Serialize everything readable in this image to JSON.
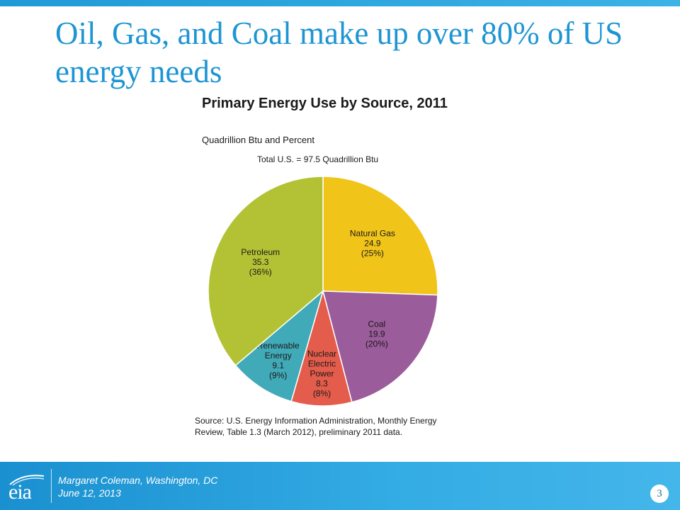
{
  "slide": {
    "title": "Oil, Gas, and Coal make up over 80%  of US energy needs",
    "page_number": "3"
  },
  "footer": {
    "logo_text": "eia",
    "presenter": "Margaret Coleman, Washington, DC",
    "date": "June 12, 2013"
  },
  "colors": {
    "accent": "#1e95d3",
    "footer_bg": "#2aa3de"
  },
  "chart_data": {
    "type": "pie",
    "title": "Primary Energy Use by Source, 2011",
    "subtitle": "Quadrillion Btu and Percent",
    "total_label": "Total U.S. = 97.5 Quadrillion Btu",
    "source_note": "Source: U.S. Energy Information Administration, Monthly Energy Review, Table 1.3 (March 2012), preliminary 2011 data.",
    "slices": [
      {
        "label": [
          "Natural Gas"
        ],
        "value": 24.9,
        "value_label": "24.9",
        "percent": "(25%)",
        "color": "#f0c419"
      },
      {
        "label": [
          "Coal"
        ],
        "value": 19.9,
        "value_label": "19.9",
        "percent": "(20%)",
        "color": "#9a5c9a"
      },
      {
        "label": [
          "Nuclear",
          "Electric",
          "Power"
        ],
        "value": 8.3,
        "value_label": "8.3",
        "percent": "(8%)",
        "color": "#e45c4b"
      },
      {
        "label": [
          "Renewable",
          "Energy"
        ],
        "value": 9.1,
        "value_label": "9.1",
        "percent": "(9%)",
        "color": "#41aab8"
      },
      {
        "label": [
          "Petroleum"
        ],
        "value": 35.3,
        "value_label": "35.3",
        "percent": "(36%)",
        "color": "#b3c234"
      }
    ]
  }
}
